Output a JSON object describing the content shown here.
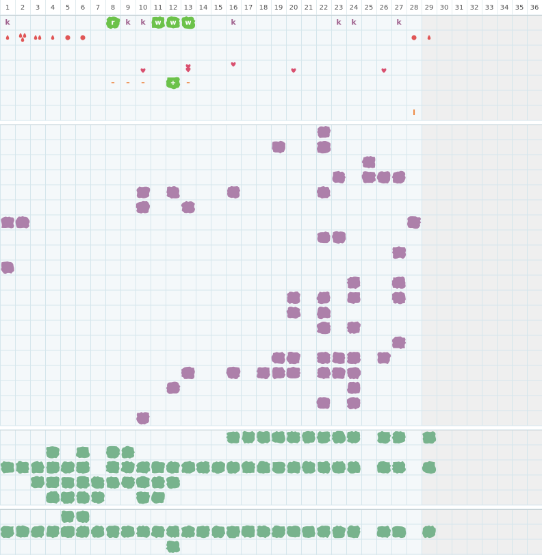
{
  "header": {
    "columns": [
      1,
      2,
      3,
      4,
      5,
      6,
      7,
      8,
      9,
      10,
      11,
      12,
      13,
      14,
      15,
      16,
      17,
      18,
      19,
      20,
      21,
      22,
      23,
      24,
      25,
      26,
      27,
      28,
      29,
      30,
      31,
      32,
      33,
      34,
      35,
      36
    ]
  },
  "tracker": {
    "row1": [
      "k",
      "r",
      "k",
      "k",
      "w",
      "w",
      "w",
      "k",
      "k",
      "k",
      "k"
    ],
    "row5": [
      "–",
      "–",
      "–",
      "+",
      "–"
    ],
    "row7": [
      "I"
    ]
  }
}
